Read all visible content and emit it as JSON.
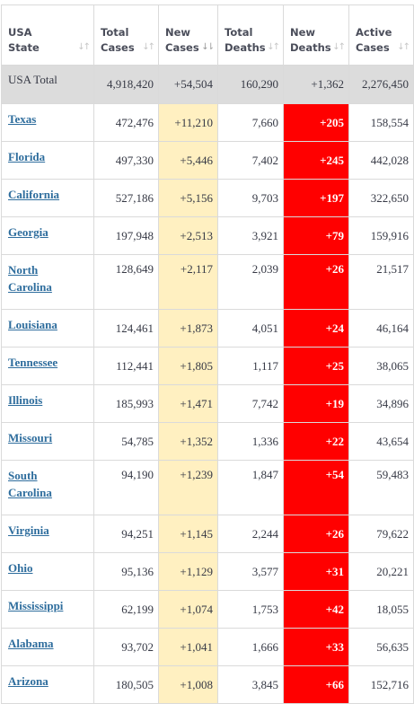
{
  "headers": [
    {
      "line1": "USA",
      "line2": "State",
      "sort": "↓↑"
    },
    {
      "line1": "Total",
      "line2": "Cases",
      "sort": "↓↑"
    },
    {
      "line1": "New",
      "line2": "Cases",
      "sort": "↓⇂"
    },
    {
      "line1": "Total",
      "line2": "Deaths",
      "sort": "↓↑"
    },
    {
      "line1": "New",
      "line2": "Deaths",
      "sort": "↓↑"
    },
    {
      "line1": "Active",
      "line2": "Cases",
      "sort": "↓↑"
    }
  ],
  "total_row": {
    "state": "USA Total",
    "total_cases": "4,918,420",
    "new_cases": "+54,504",
    "total_deaths": "160,290",
    "new_deaths": "+1,362",
    "active_cases": "2,276,450"
  },
  "rows": [
    {
      "state": "Texas",
      "total_cases": "472,476",
      "new_cases": "+11,210",
      "total_deaths": "7,660",
      "new_deaths": "+205",
      "active_cases": "158,554"
    },
    {
      "state": "Florida",
      "total_cases": "497,330",
      "new_cases": "+5,446",
      "total_deaths": "7,402",
      "new_deaths": "+245",
      "active_cases": "442,028"
    },
    {
      "state": "California",
      "total_cases": "527,186",
      "new_cases": "+5,156",
      "total_deaths": "9,703",
      "new_deaths": "+197",
      "active_cases": "322,650"
    },
    {
      "state": "Georgia",
      "total_cases": "197,948",
      "new_cases": "+2,513",
      "total_deaths": "3,921",
      "new_deaths": "+79",
      "active_cases": "159,916"
    },
    {
      "state": "North Carolina",
      "total_cases": "128,649",
      "new_cases": "+2,117",
      "total_deaths": "2,039",
      "new_deaths": "+26",
      "active_cases": "21,517"
    },
    {
      "state": "Louisiana",
      "total_cases": "124,461",
      "new_cases": "+1,873",
      "total_deaths": "4,051",
      "new_deaths": "+24",
      "active_cases": "46,164"
    },
    {
      "state": "Tennessee",
      "total_cases": "112,441",
      "new_cases": "+1,805",
      "total_deaths": "1,117",
      "new_deaths": "+25",
      "active_cases": "38,065"
    },
    {
      "state": "Illinois",
      "total_cases": "185,993",
      "new_cases": "+1,471",
      "total_deaths": "7,742",
      "new_deaths": "+19",
      "active_cases": "34,896"
    },
    {
      "state": "Missouri",
      "total_cases": "54,785",
      "new_cases": "+1,352",
      "total_deaths": "1,336",
      "new_deaths": "+22",
      "active_cases": "43,654"
    },
    {
      "state": "South Carolina",
      "total_cases": "94,190",
      "new_cases": "+1,239",
      "total_deaths": "1,847",
      "new_deaths": "+54",
      "active_cases": "59,483"
    },
    {
      "state": "Virginia",
      "total_cases": "94,251",
      "new_cases": "+1,145",
      "total_deaths": "2,244",
      "new_deaths": "+26",
      "active_cases": "79,622"
    },
    {
      "state": "Ohio",
      "total_cases": "95,136",
      "new_cases": "+1,129",
      "total_deaths": "3,577",
      "new_deaths": "+31",
      "active_cases": "20,221"
    },
    {
      "state": "Mississippi",
      "total_cases": "62,199",
      "new_cases": "+1,074",
      "total_deaths": "1,753",
      "new_deaths": "+42",
      "active_cases": "18,055"
    },
    {
      "state": "Alabama",
      "total_cases": "93,702",
      "new_cases": "+1,041",
      "total_deaths": "1,666",
      "new_deaths": "+33",
      "active_cases": "56,635"
    },
    {
      "state": "Arizona",
      "total_cases": "180,505",
      "new_cases": "+1,008",
      "total_deaths": "3,845",
      "new_deaths": "+66",
      "active_cases": "152,716"
    }
  ],
  "colors": {
    "new_cases_bg": "#fff0c1",
    "new_deaths_bg": "#ff0000",
    "total_row_bg": "#dcdcdc",
    "state_link": "#2e6d9d"
  }
}
